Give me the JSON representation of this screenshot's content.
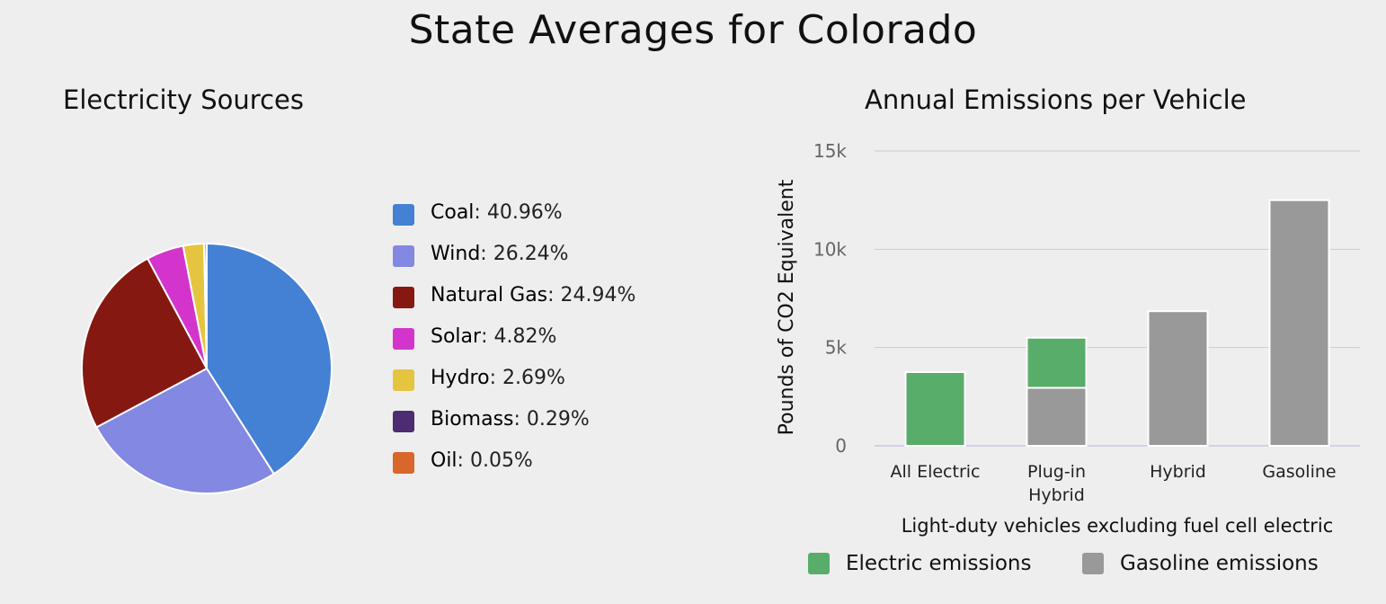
{
  "title": "State Averages for Colorado",
  "chart_data": [
    {
      "type": "pie",
      "title": "Electricity Sources",
      "slices": [
        {
          "name": "Coal",
          "label": ": 40.96%",
          "value": 40.96,
          "color": "#4480d4"
        },
        {
          "name": "Wind",
          "label": ": 26.24%",
          "value": 26.24,
          "color": "#8388e2"
        },
        {
          "name": "Natural Gas",
          "label": ": 24.94%",
          "value": 24.94,
          "color": "#861812"
        },
        {
          "name": "Solar",
          "label": ": 4.82%",
          "value": 4.82,
          "color": "#d335cc"
        },
        {
          "name": "Hydro",
          "label": ": 2.69%",
          "value": 2.69,
          "color": "#e5c440"
        },
        {
          "name": "Biomass",
          "label": ": 0.29%",
          "value": 0.29,
          "color": "#4d2c72"
        },
        {
          "name": "Oil",
          "label": ": 0.05%",
          "value": 0.05,
          "color": "#d9662a"
        }
      ],
      "legend": "right"
    },
    {
      "type": "bar",
      "stacked": true,
      "title": "Annual Emissions per Vehicle",
      "xlabel": "Light-duty vehicles excluding fuel cell electric",
      "ylabel": "Pounds of CO2 Equivalent",
      "categories": [
        [
          "All Electric"
        ],
        [
          "Plug-in",
          "Hybrid"
        ],
        [
          "Hybrid"
        ],
        [
          "Gasoline"
        ]
      ],
      "ylim": [
        0,
        15000
      ],
      "yticks": [
        0,
        5000,
        10000,
        15000
      ],
      "ytick_labels": [
        "0",
        "5k",
        "10k",
        "15k"
      ],
      "grid": true,
      "series": [
        {
          "name": "Gasoline emissions",
          "color": "#999999",
          "values": [
            0,
            2950,
            6850,
            12500
          ]
        },
        {
          "name": "Electric emissions",
          "color": "#59ad6a",
          "values": [
            3750,
            2550,
            0,
            0
          ]
        }
      ],
      "legend": "bottom"
    }
  ]
}
